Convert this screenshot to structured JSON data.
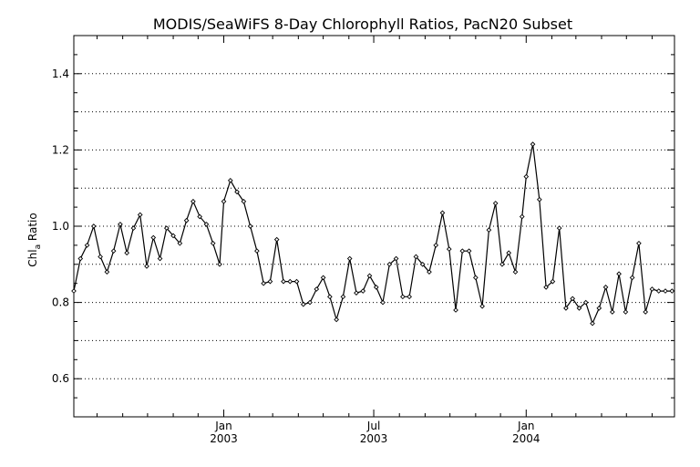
{
  "chart_data": {
    "type": "line",
    "title": "MODIS/SeaWiFS 8-Day Chlorophyll Ratios, PacN20 Subset",
    "ylabel": "Chl",
    "ylabel_subscript": "a",
    "ylabel_suffix": " Ratio",
    "xlabel": "",
    "ylim": [
      0.5,
      1.5
    ],
    "xlim": [
      "2002-07-04",
      "2004-06-28"
    ],
    "grid": true,
    "y_ticks": [
      "0.6",
      "0.8",
      "1.0",
      "1.2",
      "1.4"
    ],
    "x_ticks": [
      {
        "month": "Jan",
        "year": "2003"
      },
      {
        "month": "Jul",
        "year": "2003"
      },
      {
        "month": "Jan",
        "year": "2004"
      }
    ],
    "series": [
      {
        "x": [
          "2002-07-04",
          "2002-07-12",
          "2002-07-20",
          "2002-07-28",
          "2002-08-05",
          "2002-08-13",
          "2002-08-21",
          "2002-08-29",
          "2002-09-06",
          "2002-09-14",
          "2002-09-22",
          "2002-09-30",
          "2002-10-08",
          "2002-10-16",
          "2002-10-24",
          "2002-11-01",
          "2002-11-09",
          "2002-11-17",
          "2002-11-25",
          "2002-12-03",
          "2002-12-11",
          "2002-12-19",
          "2002-12-27",
          "2003-01-01",
          "2003-01-09",
          "2003-01-17",
          "2003-01-25",
          "2003-02-02",
          "2003-02-10",
          "2003-02-18",
          "2003-02-26",
          "2003-03-06",
          "2003-03-14",
          "2003-03-22",
          "2003-03-30",
          "2003-04-07",
          "2003-04-15",
          "2003-04-23",
          "2003-05-01",
          "2003-05-09",
          "2003-05-17",
          "2003-05-25",
          "2003-06-02",
          "2003-06-10",
          "2003-06-18",
          "2003-06-26",
          "2003-07-04",
          "2003-07-12",
          "2003-07-20",
          "2003-07-28",
          "2003-08-05",
          "2003-08-13",
          "2003-08-21",
          "2003-08-29",
          "2003-09-06",
          "2003-09-14",
          "2003-09-22",
          "2003-09-30",
          "2003-10-08",
          "2003-10-16",
          "2003-10-24",
          "2003-11-01",
          "2003-11-09",
          "2003-11-17",
          "2003-11-25",
          "2003-12-03",
          "2003-12-11",
          "2003-12-19",
          "2003-12-27",
          "2004-01-01",
          "2004-01-09",
          "2004-01-17",
          "2004-01-25",
          "2004-02-02",
          "2004-02-10",
          "2004-02-18",
          "2004-02-26",
          "2004-03-05",
          "2004-03-13",
          "2004-03-21",
          "2004-03-29",
          "2004-04-06",
          "2004-04-14",
          "2004-04-22",
          "2004-04-30",
          "2004-05-08",
          "2004-05-16",
          "2004-05-24",
          "2004-06-01",
          "2004-06-09",
          "2004-06-17",
          "2004-06-25"
        ],
        "y": [
          0.83,
          0.915,
          0.95,
          1.0,
          0.92,
          0.88,
          0.935,
          1.005,
          0.93,
          0.995,
          1.03,
          0.895,
          0.97,
          0.915,
          0.995,
          0.975,
          0.955,
          1.015,
          1.065,
          1.025,
          1.005,
          0.955,
          0.9,
          1.065,
          1.12,
          1.09,
          1.065,
          1.0,
          0.935,
          0.85,
          0.855,
          0.965,
          0.855,
          0.855,
          0.855,
          0.795,
          0.8,
          0.835,
          0.865,
          0.815,
          0.755,
          0.815,
          0.915,
          0.825,
          0.83,
          0.87,
          0.84,
          0.8,
          0.9,
          0.915,
          0.815,
          0.815,
          0.92,
          0.9,
          0.88,
          0.95,
          1.035,
          0.94,
          0.78,
          0.935,
          0.935,
          0.865,
          0.79,
          0.99,
          1.06,
          0.9,
          0.93,
          0.88,
          1.025,
          1.13,
          1.215,
          1.07,
          0.84,
          0.855,
          0.995,
          0.785,
          0.81,
          0.785,
          0.8,
          0.745,
          0.785,
          0.84,
          0.775,
          0.875,
          0.775,
          0.865,
          0.955,
          0.775,
          0.835,
          0.83,
          0.83,
          0.83
        ]
      }
    ]
  }
}
